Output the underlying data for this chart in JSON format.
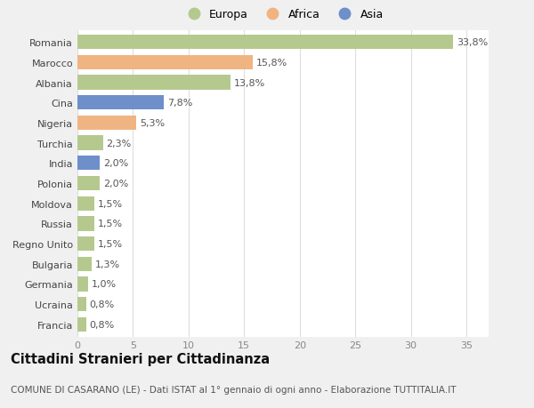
{
  "countries": [
    "Romania",
    "Marocco",
    "Albania",
    "Cina",
    "Nigeria",
    "Turchia",
    "India",
    "Polonia",
    "Moldova",
    "Russia",
    "Regno Unito",
    "Bulgaria",
    "Germania",
    "Ucraina",
    "Francia"
  ],
  "values": [
    33.8,
    15.8,
    13.8,
    7.8,
    5.3,
    2.3,
    2.0,
    2.0,
    1.5,
    1.5,
    1.5,
    1.3,
    1.0,
    0.8,
    0.8
  ],
  "labels": [
    "33,8%",
    "15,8%",
    "13,8%",
    "7,8%",
    "5,3%",
    "2,3%",
    "2,0%",
    "2,0%",
    "1,5%",
    "1,5%",
    "1,5%",
    "1,3%",
    "1,0%",
    "0,8%",
    "0,8%"
  ],
  "continents": [
    "Europa",
    "Africa",
    "Europa",
    "Asia",
    "Africa",
    "Europa",
    "Asia",
    "Europa",
    "Europa",
    "Europa",
    "Europa",
    "Europa",
    "Europa",
    "Europa",
    "Europa"
  ],
  "colors": {
    "Europa": "#b5c98e",
    "Africa": "#f0b482",
    "Asia": "#6e8fc9"
  },
  "title": "Cittadini Stranieri per Cittadinanza",
  "subtitle": "COMUNE DI CASARANO (LE) - Dati ISTAT al 1° gennaio di ogni anno - Elaborazione TUTTITALIA.IT",
  "xlim": [
    0,
    37
  ],
  "xticks": [
    0,
    5,
    10,
    15,
    20,
    25,
    30,
    35
  ],
  "background_color": "#f0f0f0",
  "plot_background": "#ffffff",
  "grid_color": "#dddddd",
  "bar_height": 0.72,
  "label_fontsize": 8.0,
  "tick_fontsize": 8.0,
  "title_fontsize": 10.5,
  "subtitle_fontsize": 7.5
}
